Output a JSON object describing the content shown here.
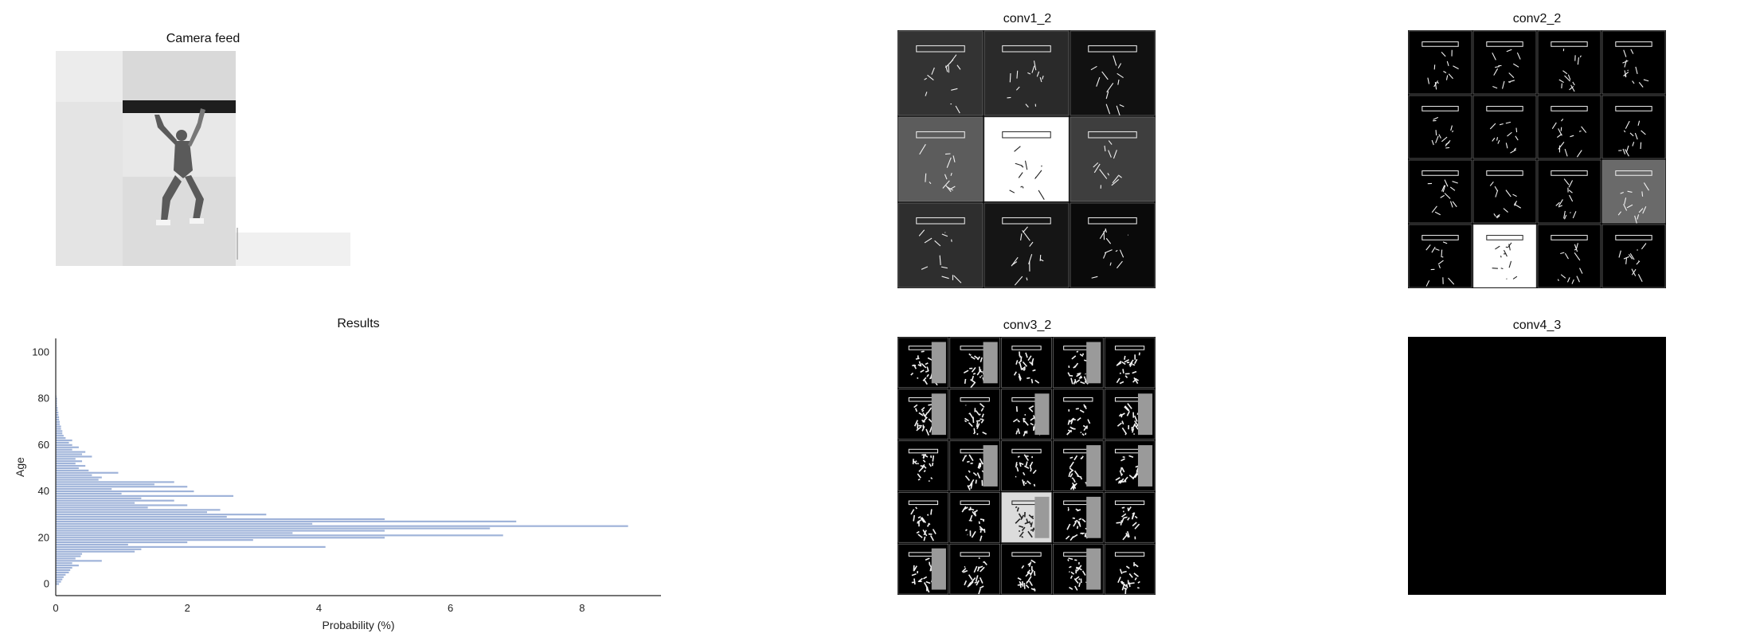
{
  "panels": {
    "camera": {
      "title": "Camera feed"
    },
    "results": {
      "title": "Results"
    },
    "conv1": {
      "title": "conv1_2"
    },
    "conv2": {
      "title": "conv2_2"
    },
    "conv3": {
      "title": "conv3_2"
    },
    "conv4": {
      "title": "conv4_3"
    }
  },
  "chart_data": {
    "type": "bar",
    "orientation": "horizontal",
    "title": "Results",
    "xlabel": "Probability (%)",
    "ylabel": "Age",
    "xlim": [
      0,
      9.2
    ],
    "ylim": [
      -5,
      106
    ],
    "xticks": [
      "0",
      "2",
      "4",
      "6",
      "8"
    ],
    "yticks": [
      "0",
      "20",
      "40",
      "60",
      "80",
      "100"
    ],
    "bar_color": "#9fb3d9",
    "ages": [
      0,
      1,
      2,
      3,
      4,
      5,
      6,
      7,
      8,
      9,
      10,
      11,
      12,
      13,
      14,
      15,
      16,
      17,
      18,
      19,
      20,
      21,
      22,
      23,
      24,
      25,
      26,
      27,
      28,
      29,
      30,
      31,
      32,
      33,
      34,
      35,
      36,
      37,
      38,
      39,
      40,
      41,
      42,
      43,
      44,
      45,
      46,
      47,
      48,
      49,
      50,
      51,
      52,
      53,
      54,
      55,
      56,
      57,
      58,
      59,
      60,
      61,
      62,
      63,
      64,
      65,
      66,
      67,
      68,
      69,
      70,
      71,
      72,
      73,
      74,
      75,
      76,
      77,
      78,
      79,
      80,
      81
    ],
    "values": [
      0.05,
      0.08,
      0.1,
      0.12,
      0.15,
      0.2,
      0.22,
      0.25,
      0.35,
      0.25,
      0.7,
      0.3,
      0.38,
      0.4,
      1.2,
      1.3,
      4.1,
      1.1,
      2.0,
      3.0,
      5.0,
      6.8,
      3.6,
      5.0,
      6.6,
      8.7,
      3.9,
      7.0,
      5.0,
      2.6,
      3.2,
      2.3,
      2.5,
      1.4,
      2.0,
      1.2,
      1.8,
      1.3,
      2.7,
      1.0,
      2.1,
      0.85,
      2.0,
      1.5,
      1.8,
      0.65,
      0.7,
      0.55,
      0.95,
      0.5,
      0.35,
      0.45,
      0.3,
      0.4,
      0.3,
      0.55,
      0.4,
      0.45,
      0.25,
      0.35,
      0.25,
      0.2,
      0.25,
      0.15,
      0.12,
      0.1,
      0.1,
      0.08,
      0.08,
      0.06,
      0.06,
      0.05,
      0.05,
      0.04,
      0.04,
      0.03,
      0.03,
      0.02,
      0.02,
      0.02,
      0.02,
      0.01
    ]
  }
}
